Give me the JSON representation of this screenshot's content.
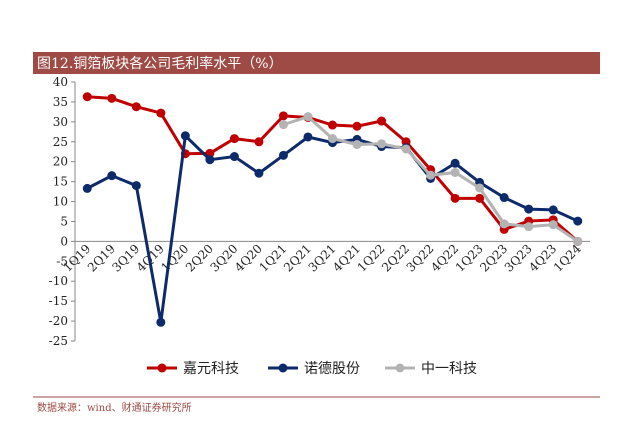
{
  "chart_data": {
    "type": "line",
    "title": "图12.铜箔板块各公司毛利率水平（%）",
    "source": "数据来源：wind、财通证券研究所",
    "categories": [
      "1Q19",
      "2Q19",
      "3Q19",
      "4Q19",
      "1Q20",
      "2Q20",
      "3Q20",
      "4Q20",
      "1Q21",
      "2Q21",
      "3Q21",
      "4Q21",
      "1Q22",
      "2Q22",
      "3Q22",
      "4Q22",
      "1Q23",
      "2Q23",
      "3Q23",
      "4Q23",
      "1Q24"
    ],
    "series": [
      {
        "name": "嘉元科技",
        "color": "#c00000",
        "values": [
          36.3,
          35.9,
          33.8,
          32.2,
          22.0,
          22.1,
          25.8,
          25.0,
          31.5,
          31.1,
          29.2,
          28.9,
          30.2,
          25.0,
          18.0,
          10.8,
          10.8,
          3.0,
          5.1,
          5.4,
          0.0
        ]
      },
      {
        "name": "诺德股份",
        "color": "#0d2b6b",
        "values": [
          13.3,
          16.5,
          14.0,
          -20.3,
          26.5,
          20.5,
          21.3,
          17.1,
          21.6,
          26.2,
          24.8,
          25.6,
          23.8,
          23.5,
          15.8,
          19.6,
          14.8,
          11.0,
          8.1,
          7.9,
          5.1
        ]
      },
      {
        "name": "中一科技",
        "color": "#b3b3b3",
        "values": [
          null,
          null,
          null,
          null,
          null,
          null,
          null,
          null,
          29.3,
          31.3,
          25.8,
          24.3,
          24.5,
          23.2,
          16.6,
          17.3,
          13.4,
          4.4,
          3.7,
          4.2,
          0.0
        ]
      }
    ],
    "ylim": [
      -25,
      40
    ],
    "yticks": [
      -25,
      -20,
      -15,
      -10,
      -5,
      0,
      5,
      10,
      15,
      20,
      25,
      30,
      35,
      40
    ]
  }
}
